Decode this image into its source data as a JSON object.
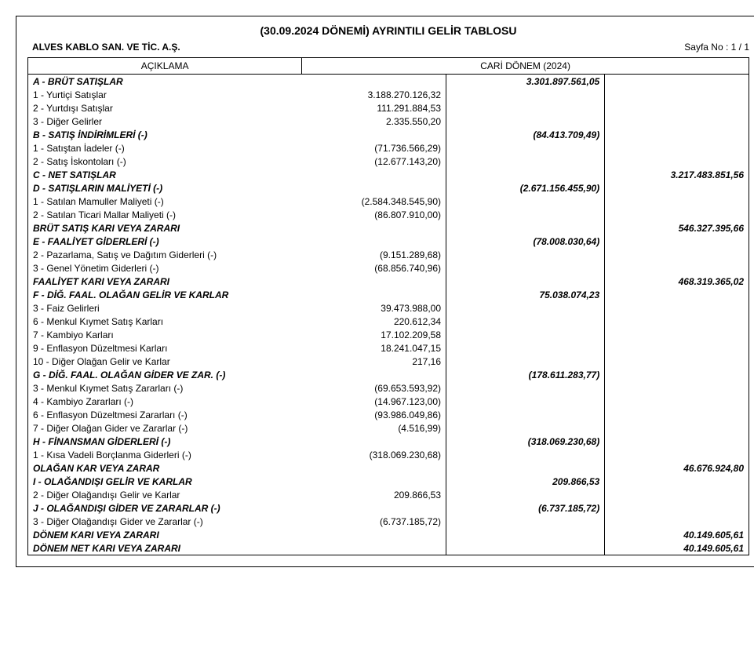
{
  "title": "(30.09.2024 DÖNEMİ) AYRINTILI GELİR TABLOSU",
  "company": "ALVES KABLO SAN. VE TİC. A.Ş.",
  "page_no_label": "Sayfa No :  1 / 1",
  "headers": {
    "description": "AÇIKLAMA",
    "period": "CARİ DÖNEM (2024)"
  },
  "rows": [
    {
      "label": "A - BRÜT SATIŞLAR",
      "style": "bold-italic",
      "indent": 0,
      "v2": "3.301.897.561,05"
    },
    {
      "label": "1 - Yurtiçi Satışlar",
      "indent": 1,
      "v1": "3.188.270.126,32"
    },
    {
      "label": "2 - Yurtdışı Satışlar",
      "indent": 1,
      "v1": "111.291.884,53"
    },
    {
      "label": "3 - Diğer Gelirler",
      "indent": 1,
      "v1": "2.335.550,20"
    },
    {
      "label": "B - SATIŞ İNDİRİMLERİ (-)",
      "style": "bold-italic",
      "indent": 0,
      "v2": "(84.413.709,49)"
    },
    {
      "label": "1 - Satıştan İadeler (-)",
      "indent": 1,
      "v1": "(71.736.566,29)"
    },
    {
      "label": "2 - Satış İskontoları (-)",
      "indent": 1,
      "v1": "(12.677.143,20)"
    },
    {
      "label": "C - NET SATIŞLAR",
      "style": "bold-italic",
      "indent": 0,
      "v3": "3.217.483.851,56"
    },
    {
      "label": "D - SATIŞLARIN MALİYETİ (-)",
      "style": "bold-italic",
      "indent": 0,
      "v2": "(2.671.156.455,90)"
    },
    {
      "label": "1 - Satılan Mamuller Maliyeti (-)",
      "indent": 1,
      "v1": "(2.584.348.545,90)"
    },
    {
      "label": "2 - Satılan Ticari Mallar Maliyeti (-)",
      "indent": 1,
      "v1": "(86.807.910,00)"
    },
    {
      "label": "BRÜT SATIŞ KARI VEYA ZARARI",
      "style": "bold-italic",
      "indent": 0,
      "v3": "546.327.395,66"
    },
    {
      "label": "E - FAALİYET GİDERLERİ (-)",
      "style": "bold-italic",
      "indent": 0,
      "v2": "(78.008.030,64)"
    },
    {
      "label": "2 - Pazarlama, Satış ve Dağıtım Giderleri (-)",
      "indent": 1,
      "v1": "(9.151.289,68)"
    },
    {
      "label": "3 - Genel Yönetim Giderleri (-)",
      "indent": 1,
      "v1": "(68.856.740,96)"
    },
    {
      "label": "FAALİYET KARI VEYA ZARARI",
      "style": "bold-italic",
      "indent": 0,
      "v3": "468.319.365,02"
    },
    {
      "label": "F - DİĞ. FAAL. OLAĞAN GELİR VE KARLAR",
      "style": "bold-italic",
      "indent": 0,
      "v2": "75.038.074,23"
    },
    {
      "label": "3 - Faiz Gelirleri",
      "indent": 1,
      "v1": "39.473.988,00"
    },
    {
      "label": "6 - Menkul Kıymet Satış Karları",
      "indent": 1,
      "v1": "220.612,34"
    },
    {
      "label": "7 - Kambiyo Karları",
      "indent": 1,
      "v1": "17.102.209,58"
    },
    {
      "label": "9 - Enflasyon Düzeltmesi Karları",
      "indent": 1,
      "v1": "18.241.047,15"
    },
    {
      "label": "10 - Diğer Olağan Gelir ve Karlar",
      "indent": 1,
      "v1": "217,16",
      "indent_variant": "b"
    },
    {
      "label": "G - DİĞ. FAAL. OLAĞAN GİDER VE ZAR. (-)",
      "style": "bold-italic",
      "indent": 0,
      "v2": "(178.611.283,77)"
    },
    {
      "label": "3 - Menkul Kıymet Satış Zararları (-)",
      "indent": 1,
      "v1": "(69.653.593,92)"
    },
    {
      "label": "4 - Kambiyo Zararları (-)",
      "indent": 1,
      "v1": "(14.967.123,00)"
    },
    {
      "label": "6 - Enflasyon Düzeltmesi Zararları (-)",
      "indent": 1,
      "v1": "(93.986.049,86)"
    },
    {
      "label": "7 - Diğer Olağan Gider ve Zararlar (-)",
      "indent": 1,
      "v1": "(4.516,99)"
    },
    {
      "label": "H - FİNANSMAN GİDERLERİ (-)",
      "style": "bold-italic",
      "indent": 0,
      "v2": "(318.069.230,68)"
    },
    {
      "label": "1 - Kısa Vadeli Borçlanma Giderleri (-)",
      "indent": 1,
      "v1": "(318.069.230,68)"
    },
    {
      "label": "OLAĞAN KAR VEYA ZARAR",
      "style": "bold-italic",
      "indent": 0,
      "v3": "46.676.924,80"
    },
    {
      "label": "I - OLAĞANDIŞI GELİR VE KARLAR",
      "style": "bold-italic",
      "indent": 0,
      "v2": "209.866,53"
    },
    {
      "label": "2 - Diğer Olağandışı Gelir ve Karlar",
      "indent": 1,
      "v1": "209.866,53"
    },
    {
      "label": "J - OLAĞANDIŞI GİDER VE ZARARLAR (-)",
      "style": "bold-italic",
      "indent": 0,
      "v2": "(6.737.185,72)"
    },
    {
      "label": "3 - Diğer Olağandışı Gider ve Zararlar (-)",
      "indent": 1,
      "v1": "(6.737.185,72)"
    },
    {
      "label": "DÖNEM KARI VEYA ZARARI",
      "style": "bold-italic",
      "indent": 0,
      "v3": "40.149.605,61"
    },
    {
      "label": "DÖNEM NET KARI VEYA ZARARI",
      "style": "bold-italic",
      "indent": 0,
      "v3": "40.149.605,61",
      "last": true
    }
  ]
}
